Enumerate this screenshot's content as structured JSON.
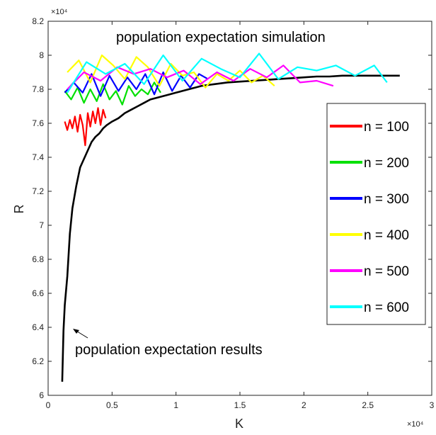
{
  "chart_data": {
    "type": "line",
    "title": "",
    "xlabel": "K",
    "ylabel": "R",
    "x_exponent_label": "×10⁴",
    "y_exponent_label": "×10⁴",
    "xlim": [
      0,
      30000
    ],
    "ylim": [
      60000,
      82000
    ],
    "x_ticks": [
      0,
      5000,
      10000,
      15000,
      20000,
      25000,
      30000
    ],
    "x_tick_labels": [
      "0",
      "0.5",
      "1",
      "1.5",
      "2",
      "2.5",
      "3"
    ],
    "y_ticks": [
      60000,
      62000,
      64000,
      66000,
      68000,
      70000,
      72000,
      74000,
      76000,
      78000,
      80000,
      82000
    ],
    "y_tick_labels": [
      "6",
      "6.2",
      "6.4",
      "6.6",
      "6.8",
      "7",
      "7.2",
      "7.4",
      "7.6",
      "7.8",
      "8",
      "8.2"
    ],
    "grid": false,
    "legend_position": "right",
    "annotations": [
      {
        "text": "population expectation simulation",
        "x": 5300,
        "y": 80400
      },
      {
        "text": "population expectation results",
        "x": 2200,
        "y": 62500,
        "arrow_to": [
          1000,
          63900
        ]
      }
    ],
    "series": [
      {
        "name": "n = 100",
        "color": "#ff0000",
        "x": [
          1300,
          1500,
          1700,
          1900,
          2100,
          2300,
          2500,
          2700,
          2900,
          3100,
          3300,
          3500,
          3700,
          3900,
          4100,
          4300,
          4500
        ],
        "y": [
          76100,
          75600,
          76200,
          75700,
          76400,
          75500,
          76500,
          75900,
          74700,
          76600,
          75800,
          76700,
          76000,
          76900,
          75900,
          76800,
          76300
        ]
      },
      {
        "name": "n = 200",
        "color": "#00e000",
        "x": [
          1300,
          1800,
          2300,
          2800,
          3300,
          3800,
          4300,
          4800,
          5300,
          5800,
          6300,
          6800,
          7300,
          7800,
          8300,
          8800
        ],
        "y": [
          77900,
          77400,
          78100,
          77200,
          78000,
          77300,
          78300,
          77400,
          77900,
          77100,
          78200,
          77600,
          78000,
          77700,
          78400,
          77800
        ]
      },
      {
        "name": "n = 300",
        "color": "#0000ff",
        "x": [
          1300,
          2000,
          2700,
          3400,
          4100,
          4800,
          5500,
          6200,
          6900,
          7600,
          8300,
          9000,
          9700,
          10400,
          11100,
          11800,
          12500
        ],
        "y": [
          77800,
          78400,
          77800,
          78900,
          77600,
          78800,
          77900,
          78700,
          78000,
          78900,
          77700,
          79000,
          77900,
          78800,
          78100,
          78900,
          78600
        ]
      },
      {
        "name": "n = 400",
        "color": "#ffff00",
        "x": [
          1500,
          2400,
          3300,
          4200,
          5100,
          6000,
          6900,
          7800,
          8700,
          9600,
          10500,
          11400,
          12300,
          13200,
          14100,
          15000,
          15900,
          16800,
          17700
        ],
        "y": [
          79000,
          79700,
          78400,
          80000,
          79400,
          78600,
          79900,
          79300,
          78200,
          79500,
          78800,
          79000,
          78100,
          78900,
          78500,
          79100,
          78400,
          78800,
          78200
        ]
      },
      {
        "name": "n = 500",
        "color": "#ff00ff",
        "x": [
          1500,
          2800,
          4100,
          5400,
          6700,
          8000,
          9300,
          10600,
          11900,
          13200,
          14500,
          15800,
          17100,
          18400,
          19700,
          21000,
          22300
        ],
        "y": [
          78000,
          79000,
          78500,
          79300,
          78900,
          79200,
          78700,
          79100,
          78300,
          79000,
          78500,
          79200,
          78700,
          79400,
          78400,
          78500,
          78200
        ]
      },
      {
        "name": "n = 600",
        "color": "#00ffff",
        "x": [
          1500,
          3000,
          4500,
          6000,
          7500,
          9000,
          10500,
          12000,
          13500,
          15000,
          16500,
          18000,
          19500,
          21000,
          22500,
          24000,
          25500,
          26500
        ],
        "y": [
          77800,
          79600,
          78900,
          79500,
          78300,
          80000,
          78500,
          79800,
          79200,
          78700,
          80100,
          78600,
          79300,
          79100,
          79400,
          78800,
          79400,
          78400
        ]
      },
      {
        "name": "",
        "color": "#000000",
        "x": [
          1100,
          1200,
          1300,
          1500,
          1700,
          1900,
          2200,
          2500,
          2800,
          3100,
          3400,
          3700,
          4000,
          4300,
          4600,
          5000,
          5500,
          6000,
          6500,
          7000,
          7500,
          8000,
          8500,
          9000,
          9500,
          10000,
          10500,
          11000,
          11500,
          12000,
          12500,
          13000,
          14000,
          15000,
          16000,
          17000,
          18000,
          19000,
          20000,
          21000,
          22000,
          23000,
          24000,
          25000,
          26000,
          27500
        ],
        "y": [
          60800,
          63800,
          65300,
          67000,
          69500,
          71000,
          72300,
          73400,
          73900,
          74400,
          74900,
          75200,
          75400,
          75700,
          75900,
          76100,
          76300,
          76600,
          76800,
          77000,
          77200,
          77400,
          77500,
          77600,
          77700,
          77800,
          77900,
          78000,
          78100,
          78200,
          78250,
          78300,
          78400,
          78450,
          78500,
          78550,
          78600,
          78650,
          78700,
          78750,
          78750,
          78800,
          78800,
          78800,
          78800,
          78800
        ]
      }
    ]
  }
}
